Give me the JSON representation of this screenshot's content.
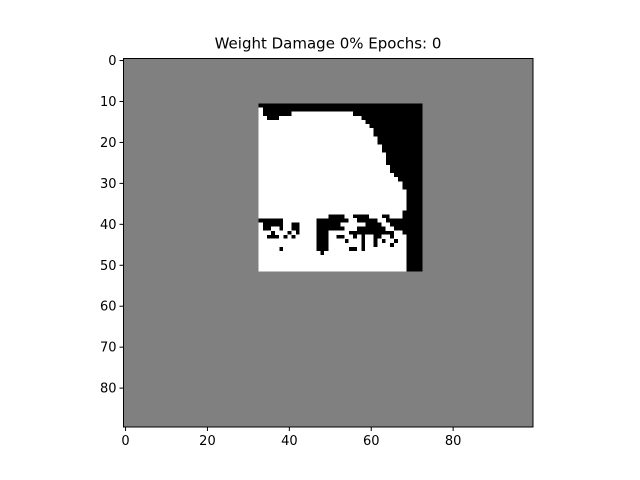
{
  "chart_data": {
    "type": "heatmap",
    "title": "Weight Damage 0% Epochs: 0",
    "xlabel": "",
    "ylabel": "",
    "xlim": [
      -0.5,
      99.5
    ],
    "ylim": [
      89.5,
      -0.5
    ],
    "x_ticks": [
      0,
      20,
      40,
      60,
      80
    ],
    "y_ticks": [
      0,
      10,
      20,
      30,
      40,
      50,
      60,
      70,
      80
    ],
    "grid": false,
    "colormap": "gray",
    "background_value": 0.5,
    "image_region": {
      "x": [
        33,
        72
      ],
      "y": [
        11,
        51
      ]
    },
    "colors": {
      "background": "#808080",
      "ink": "#000000",
      "paper": "#ffffff"
    },
    "white_rows": [
      {
        "y": 12,
        "spans": [
          [
            33,
            33
          ]
        ]
      },
      {
        "y": 13,
        "spans": [
          [
            33,
            33
          ],
          [
            41,
            55
          ]
        ]
      },
      {
        "y": 14,
        "spans": [
          [
            33,
            34
          ],
          [
            38,
            57
          ]
        ]
      },
      {
        "y": 15,
        "spans": [
          [
            33,
            58
          ]
        ]
      },
      {
        "y": 16,
        "spans": [
          [
            33,
            59
          ]
        ]
      },
      {
        "y": 17,
        "spans": [
          [
            33,
            60
          ]
        ]
      },
      {
        "y": 18,
        "spans": [
          [
            33,
            60
          ]
        ]
      },
      {
        "y": 19,
        "spans": [
          [
            33,
            61
          ]
        ]
      },
      {
        "y": 20,
        "spans": [
          [
            33,
            61
          ]
        ]
      },
      {
        "y": 21,
        "spans": [
          [
            33,
            62
          ]
        ]
      },
      {
        "y": 22,
        "spans": [
          [
            33,
            62
          ]
        ]
      },
      {
        "y": 23,
        "spans": [
          [
            33,
            63
          ]
        ]
      },
      {
        "y": 24,
        "spans": [
          [
            33,
            63
          ]
        ]
      },
      {
        "y": 25,
        "spans": [
          [
            33,
            63
          ]
        ]
      },
      {
        "y": 26,
        "spans": [
          [
            33,
            64
          ]
        ]
      },
      {
        "y": 27,
        "spans": [
          [
            33,
            64
          ]
        ]
      },
      {
        "y": 28,
        "spans": [
          [
            33,
            65
          ]
        ]
      },
      {
        "y": 29,
        "spans": [
          [
            33,
            66
          ]
        ]
      },
      {
        "y": 30,
        "spans": [
          [
            33,
            67
          ]
        ]
      },
      {
        "y": 31,
        "spans": [
          [
            33,
            67
          ]
        ]
      },
      {
        "y": 32,
        "spans": [
          [
            33,
            68
          ]
        ]
      },
      {
        "y": 33,
        "spans": [
          [
            33,
            68
          ]
        ]
      },
      {
        "y": 34,
        "spans": [
          [
            33,
            68
          ]
        ]
      },
      {
        "y": 35,
        "spans": [
          [
            33,
            68
          ]
        ]
      },
      {
        "y": 36,
        "spans": [
          [
            33,
            68
          ]
        ]
      },
      {
        "y": 37,
        "spans": [
          [
            33,
            67
          ]
        ]
      },
      {
        "y": 38,
        "spans": [
          [
            33,
            49
          ],
          [
            54,
            55
          ],
          [
            60,
            62
          ],
          [
            65,
            67
          ]
        ]
      },
      {
        "y": 39,
        "spans": [
          [
            39,
            46
          ],
          [
            55,
            56
          ],
          [
            62,
            63
          ]
        ]
      },
      {
        "y": 40,
        "spans": [
          [
            33,
            33
          ],
          [
            39,
            40
          ],
          [
            43,
            46
          ],
          [
            53,
            58
          ],
          [
            63,
            64
          ]
        ]
      },
      {
        "y": 41,
        "spans": [
          [
            33,
            33
          ],
          [
            36,
            37
          ],
          [
            39,
            40
          ],
          [
            43,
            46
          ],
          [
            54,
            56
          ],
          [
            64,
            65
          ]
        ]
      },
      {
        "y": 42,
        "spans": [
          [
            33,
            35
          ],
          [
            37,
            39
          ],
          [
            41,
            41
          ],
          [
            43,
            46
          ],
          [
            50,
            54
          ],
          [
            66,
            67
          ]
        ]
      },
      {
        "y": 43,
        "spans": [
          [
            33,
            34
          ],
          [
            38,
            38
          ],
          [
            40,
            40
          ],
          [
            42,
            46
          ],
          [
            50,
            51
          ],
          [
            54,
            55
          ],
          [
            57,
            57
          ],
          [
            59,
            60
          ],
          [
            63,
            64
          ],
          [
            66,
            68
          ]
        ]
      },
      {
        "y": 44,
        "spans": [
          [
            33,
            46
          ],
          [
            50,
            53
          ],
          [
            55,
            57
          ],
          [
            59,
            60
          ],
          [
            62,
            62
          ],
          [
            64,
            65
          ],
          [
            67,
            68
          ]
        ]
      },
      {
        "y": 45,
        "spans": [
          [
            33,
            46
          ],
          [
            50,
            57
          ],
          [
            59,
            60
          ],
          [
            62,
            64
          ],
          [
            66,
            68
          ]
        ]
      },
      {
        "y": 46,
        "spans": [
          [
            33,
            37
          ],
          [
            39,
            46
          ],
          [
            50,
            54
          ],
          [
            57,
            57
          ],
          [
            59,
            68
          ]
        ]
      },
      {
        "y": 47,
        "spans": [
          [
            33,
            47
          ],
          [
            49,
            68
          ]
        ]
      },
      {
        "y": 48,
        "spans": [
          [
            33,
            68
          ]
        ]
      },
      {
        "y": 49,
        "spans": [
          [
            33,
            68
          ]
        ]
      },
      {
        "y": 50,
        "spans": [
          [
            33,
            68
          ]
        ]
      },
      {
        "y": 51,
        "spans": [
          [
            33,
            68
          ]
        ]
      }
    ]
  }
}
